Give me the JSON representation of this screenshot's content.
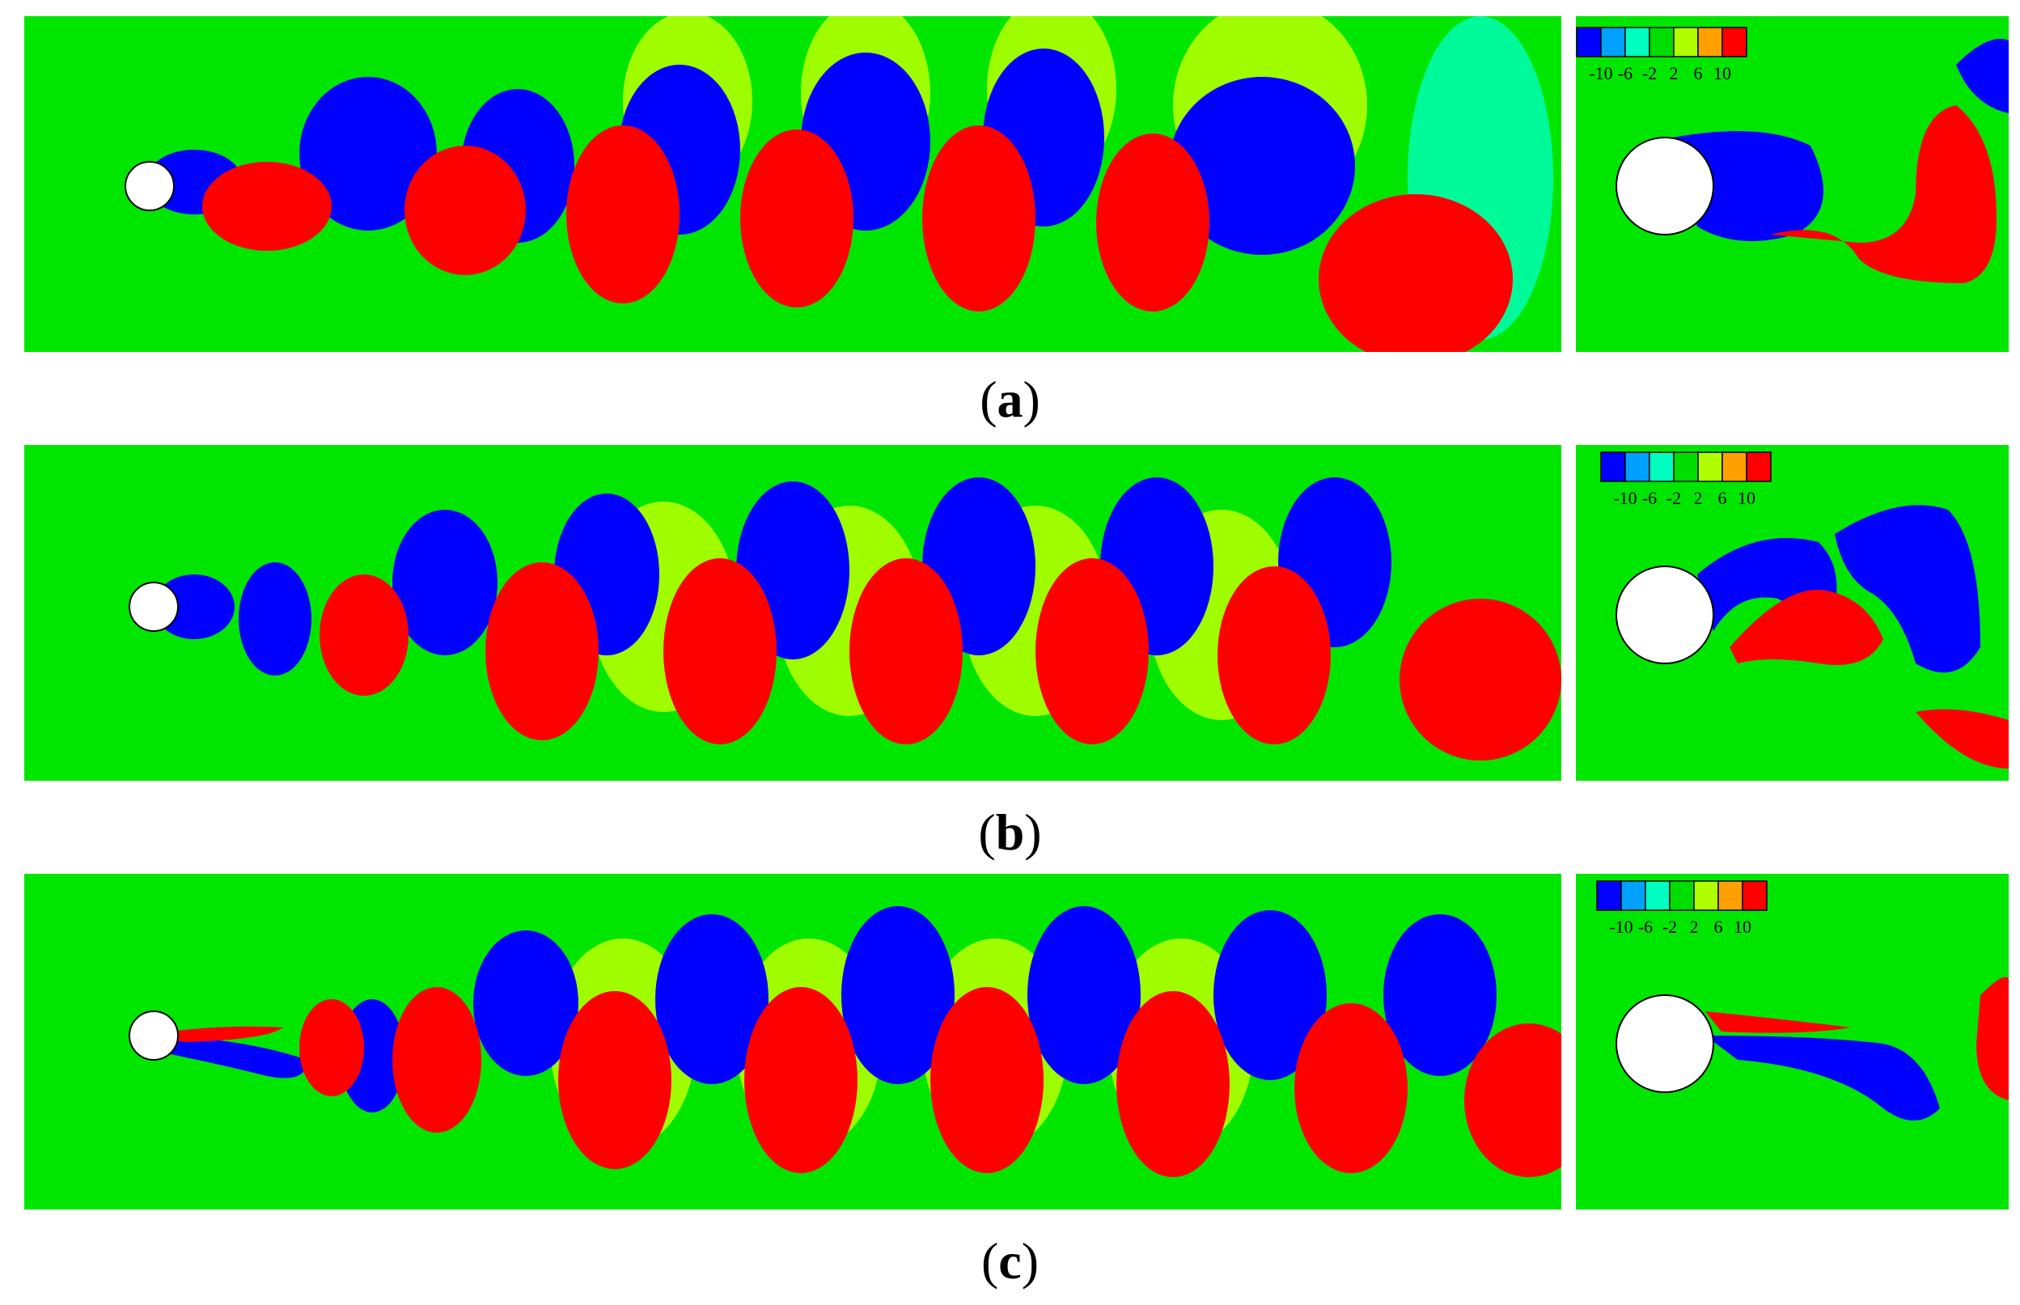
{
  "figure": {
    "panels": [
      {
        "id": "a",
        "label": "a"
      },
      {
        "id": "b",
        "label": "b"
      },
      {
        "id": "c",
        "label": "c"
      }
    ],
    "legend": {
      "tick_labels": [
        "-10",
        "-6",
        "-2",
        "2",
        "6",
        "10"
      ],
      "colors": [
        "#0000ff",
        "#00a0ff",
        "#00ffc0",
        "#00dd00",
        "#b0ff00",
        "#ffa000",
        "#ff0000"
      ]
    },
    "colors": {
      "background": "#00e600",
      "positive": "#ff0000",
      "negative": "#0000ff",
      "cylinder": "#ffffff"
    }
  }
}
